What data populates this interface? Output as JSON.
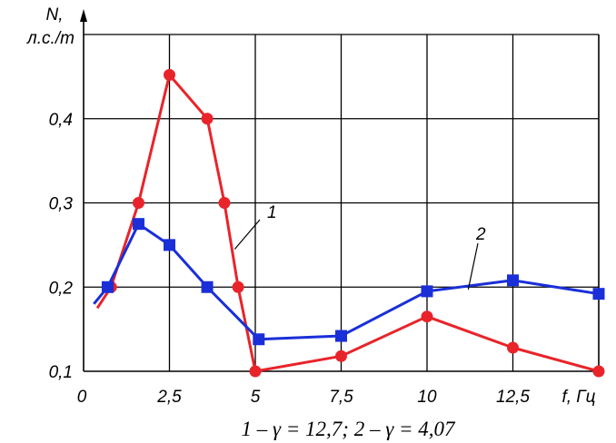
{
  "chart_data": {
    "type": "line",
    "ylabel_line1": "N,",
    "ylabel_line2": "л.с./т",
    "xlabel": "f, Гц",
    "xlim": [
      0,
      15
    ],
    "ylim": [
      0.1,
      0.5
    ],
    "grid": true,
    "x_ticks": [
      {
        "value": 0,
        "label": "0"
      },
      {
        "value": 2.5,
        "label": "2,5"
      },
      {
        "value": 5,
        "label": "5"
      },
      {
        "value": 7.5,
        "label": "7,5"
      },
      {
        "value": 10,
        "label": "10"
      },
      {
        "value": 12.5,
        "label": "12,5"
      }
    ],
    "y_ticks": [
      {
        "value": 0.1,
        "label": "0,1"
      },
      {
        "value": 0.2,
        "label": "0,2"
      },
      {
        "value": 0.3,
        "label": "0,3"
      },
      {
        "value": 0.4,
        "label": "0,4"
      }
    ],
    "series": [
      {
        "label": "1",
        "color": "#e8242a",
        "marker": "circle",
        "x": [
          0.4,
          0.8,
          1.6,
          2.5,
          3.6,
          4.1,
          4.5,
          5.0,
          7.5,
          10.0,
          12.5,
          15.0
        ],
        "y": [
          0.175,
          0.2,
          0.3,
          0.452,
          0.4,
          0.3,
          0.2,
          0.1,
          0.118,
          0.165,
          0.128,
          0.1
        ],
        "marker_points": [
          1,
          2,
          3,
          4,
          5,
          6,
          7,
          8,
          9,
          10,
          11
        ]
      },
      {
        "label": "2",
        "color": "#1a2fd8",
        "marker": "square",
        "x": [
          0.3,
          0.7,
          1.6,
          2.5,
          3.6,
          5.1,
          7.5,
          10.0,
          12.5,
          15.0
        ],
        "y": [
          0.18,
          0.2,
          0.275,
          0.25,
          0.2,
          0.138,
          0.142,
          0.195,
          0.208,
          0.192
        ],
        "marker_points": [
          1,
          2,
          3,
          4,
          5,
          6,
          7,
          8,
          9
        ]
      }
    ],
    "annotations": [
      {
        "text": "1",
        "series": 0
      },
      {
        "text": "2",
        "series": 1
      }
    ],
    "caption": "1 – γ = 12,7; 2 – γ = 4,07"
  }
}
